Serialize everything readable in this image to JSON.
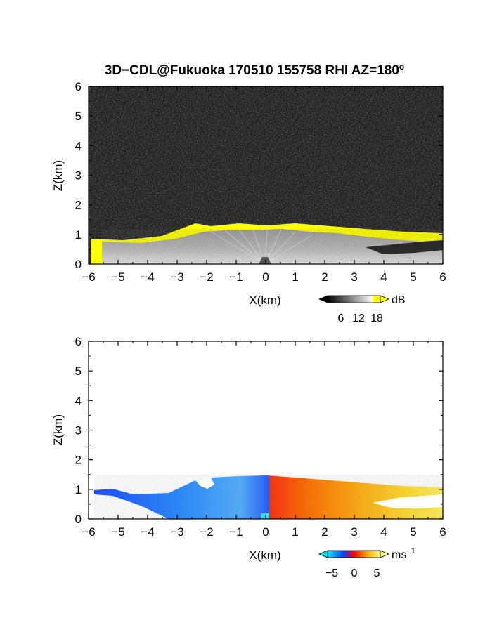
{
  "title": "3D−CDL@Fukuoka 170510 155758 RHI AZ=180",
  "title_sup": "o",
  "chart_data": [
    {
      "type": "heatmap",
      "panel": "reflectivity",
      "xlabel": "X(km)",
      "ylabel": "Z(km)",
      "xlim": [
        -6,
        6
      ],
      "ylim": [
        0,
        6
      ],
      "xticks": [
        "−6",
        "−5",
        "−4",
        "−3",
        "−2",
        "−1",
        "0",
        "1",
        "2",
        "3",
        "4",
        "5",
        "6"
      ],
      "yticks": [
        "0",
        "1",
        "2",
        "3",
        "4",
        "5",
        "6"
      ],
      "colorbar": {
        "unit": "dB",
        "ticks": [
          "6",
          "12",
          "18"
        ],
        "range": [
          0,
          20
        ],
        "colors": [
          "#000000",
          "#ffffff",
          "#ffff00"
        ]
      },
      "background": "#1e1e1e",
      "echo_top_km": [
        {
          "x": -6,
          "z": 0.9
        },
        {
          "x": -4,
          "z": 0.85
        },
        {
          "x": -2.3,
          "z": 1.35
        },
        {
          "x": 0,
          "z": 1.4
        },
        {
          "x": 2,
          "z": 1.3
        },
        {
          "x": 4,
          "z": 1.15
        },
        {
          "x": 6,
          "z": 1.0
        }
      ],
      "saturation_value_db": 20
    },
    {
      "type": "heatmap",
      "panel": "velocity",
      "xlabel": "X(km)",
      "ylabel": "Z(km)",
      "xlim": [
        -6,
        6
      ],
      "ylim": [
        0,
        6
      ],
      "xticks": [
        "−6",
        "−5",
        "−4",
        "−3",
        "−2",
        "−1",
        "0",
        "1",
        "2",
        "3",
        "4",
        "5",
        "6"
      ],
      "yticks": [
        "0",
        "1",
        "2",
        "3",
        "4",
        "5",
        "6"
      ],
      "colorbar": {
        "unit": "ms",
        "unit_sup": "−1",
        "ticks": [
          "−5",
          "0",
          "5"
        ],
        "range": [
          -7,
          7
        ],
        "colors": [
          "#00e5ff",
          "#0044ff",
          "#ff0000",
          "#ffaa00",
          "#ffff80"
        ]
      },
      "velocity_ms": [
        {
          "x": -6,
          "v": -6
        },
        {
          "x": -3,
          "v": -6
        },
        {
          "x": -1,
          "v": -3
        },
        {
          "x": 0,
          "v": 2
        },
        {
          "x": 2,
          "v": 4
        },
        {
          "x": 4,
          "v": 5
        },
        {
          "x": 6,
          "v": 6
        }
      ]
    }
  ]
}
